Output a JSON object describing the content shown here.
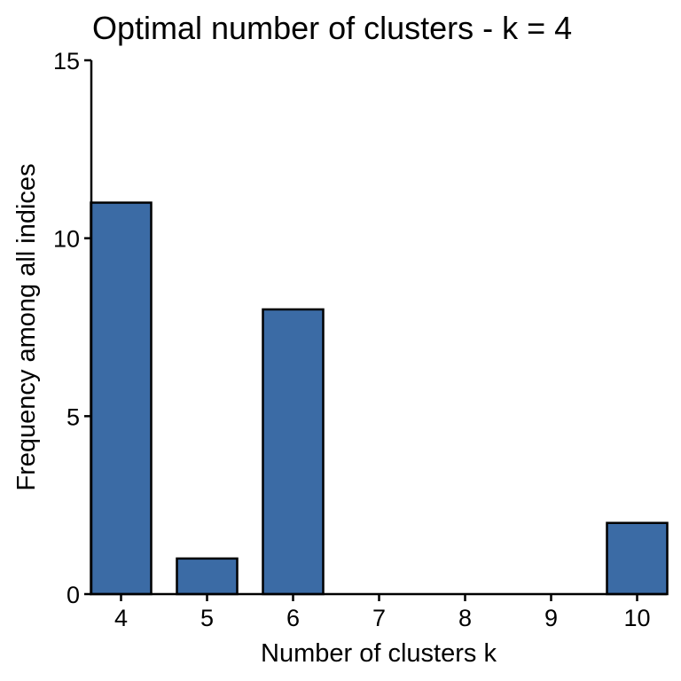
{
  "chart_data": {
    "type": "bar",
    "title": "Optimal number of clusters - k = 4",
    "xlabel": "Number of clusters k",
    "ylabel": "Frequency among all indices",
    "categories": [
      "4",
      "5",
      "6",
      "7",
      "8",
      "9",
      "10"
    ],
    "values": [
      11,
      1,
      8,
      0,
      0,
      0,
      2
    ],
    "ylim": [
      0,
      15
    ],
    "yticks": [
      "0",
      "5",
      "10",
      "15"
    ],
    "grid": false,
    "legend": "none",
    "bar_color": "#3b6ba5",
    "bar_border_color": "#000000"
  }
}
